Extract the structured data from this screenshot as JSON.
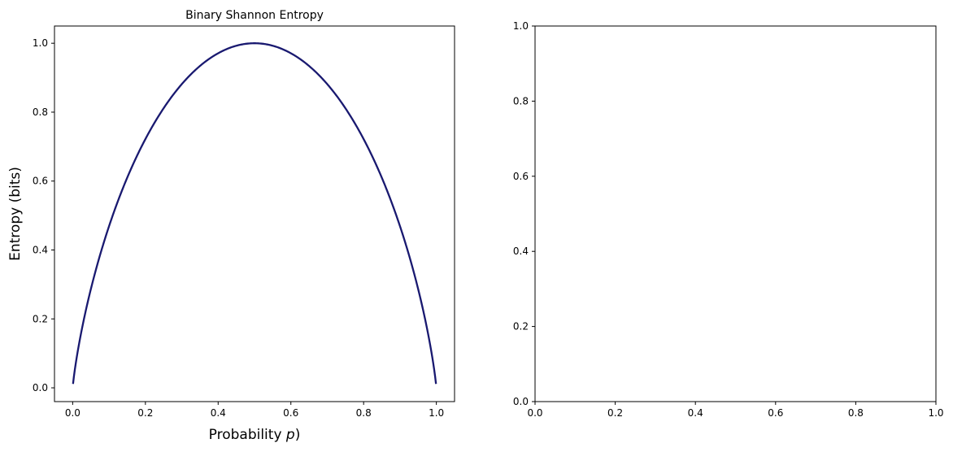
{
  "chart_data": [
    {
      "type": "line",
      "title": "Binary Shannon Entropy",
      "xlabel_prefix": "Probability ",
      "xlabel_var": "p",
      "xlabel_suffix": ")",
      "ylabel": "Entropy (bits)",
      "xlim": [
        -0.05,
        1.05
      ],
      "ylim": [
        -0.04,
        1.05
      ],
      "xticks": [
        0.0,
        0.2,
        0.4,
        0.6,
        0.8,
        1.0
      ],
      "xtick_labels": [
        "0.0",
        "0.2",
        "0.4",
        "0.6",
        "0.8",
        "1.0"
      ],
      "yticks": [
        0.0,
        0.2,
        0.4,
        0.6,
        0.8,
        1.0
      ],
      "ytick_labels": [
        "0.0",
        "0.2",
        "0.4",
        "0.6",
        "0.8",
        "1.0"
      ],
      "grid": false,
      "legend": "none",
      "series": [
        {
          "color": "#191970",
          "x": [
            0.001,
            0.01,
            0.02,
            0.05,
            0.1,
            0.15,
            0.2,
            0.25,
            0.3,
            0.35,
            0.4,
            0.45,
            0.5,
            0.55,
            0.6,
            0.65,
            0.7,
            0.75,
            0.8,
            0.85,
            0.9,
            0.95,
            0.98,
            0.99,
            0.999
          ],
          "y": [
            0.011,
            0.081,
            0.141,
            0.286,
            0.469,
            0.61,
            0.722,
            0.811,
            0.881,
            0.934,
            0.971,
            0.993,
            1.0,
            0.993,
            0.971,
            0.934,
            0.881,
            0.811,
            0.722,
            0.61,
            0.469,
            0.286,
            0.141,
            0.081,
            0.011
          ]
        }
      ]
    },
    {
      "type": "line",
      "title": "",
      "xlabel": "",
      "ylabel": "",
      "xlim": [
        0.0,
        1.0
      ],
      "ylim": [
        0.0,
        1.0
      ],
      "xticks": [
        0.0,
        0.2,
        0.4,
        0.6,
        0.8,
        1.0
      ],
      "xtick_labels": [
        "0.0",
        "0.2",
        "0.4",
        "0.6",
        "0.8",
        "1.0"
      ],
      "yticks": [
        0.0,
        0.2,
        0.4,
        0.6,
        0.8,
        1.0
      ],
      "ytick_labels": [
        "0.0",
        "0.2",
        "0.4",
        "0.6",
        "0.8",
        "1.0"
      ],
      "grid": false,
      "legend": "none",
      "series": []
    }
  ]
}
